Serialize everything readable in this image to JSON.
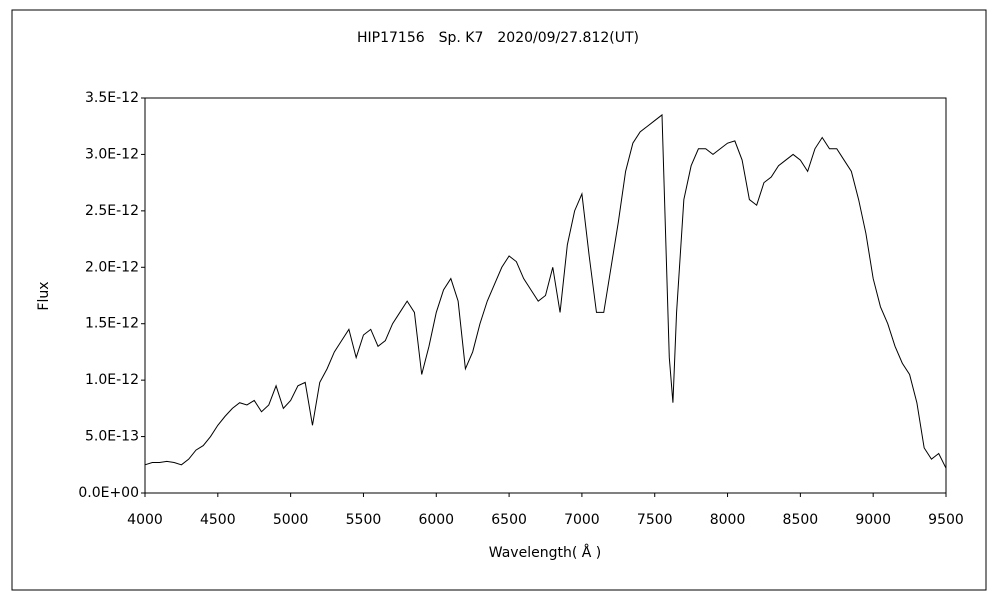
{
  "chart_data": {
    "type": "line",
    "title": "HIP17156　Sp. K7　2020/09/27.812(UT)",
    "x_label": "Wavelength( Å )",
    "y_label": "Flux",
    "color": "#000000",
    "grid": false,
    "xlim": [
      4000,
      9500
    ],
    "xticks": [
      4000,
      4500,
      5000,
      5500,
      6000,
      6500,
      7000,
      7500,
      8000,
      8500,
      9000,
      9500
    ],
    "ylim": [
      0,
      3.5e-12
    ],
    "yticks": [
      {
        "value": 0,
        "label": "0.0E+00"
      },
      {
        "value": 5e-13,
        "label": "5.0E-13"
      },
      {
        "value": 1e-12,
        "label": "1.0E-12"
      },
      {
        "value": 1.5e-12,
        "label": "1.5E-12"
      },
      {
        "value": 2e-12,
        "label": "2.0E-12"
      },
      {
        "value": 2.5e-12,
        "label": "2.5E-12"
      },
      {
        "value": 3e-12,
        "label": "3.0E-12"
      },
      {
        "value": 3.5e-12,
        "label": "3.5E-12"
      }
    ],
    "x": [
      4000,
      4050,
      4100,
      4150,
      4200,
      4250,
      4300,
      4350,
      4400,
      4450,
      4500,
      4550,
      4600,
      4650,
      4700,
      4750,
      4800,
      4850,
      4900,
      4950,
      5000,
      5050,
      5100,
      5150,
      5200,
      5250,
      5300,
      5350,
      5400,
      5450,
      5500,
      5550,
      5600,
      5650,
      5700,
      5750,
      5800,
      5850,
      5900,
      5950,
      6000,
      6050,
      6100,
      6150,
      6200,
      6250,
      6300,
      6350,
      6400,
      6450,
      6500,
      6550,
      6600,
      6650,
      6700,
      6750,
      6800,
      6850,
      6900,
      6950,
      7000,
      7050,
      7100,
      7150,
      7200,
      7250,
      7300,
      7350,
      7400,
      7450,
      7500,
      7550,
      7600,
      7625,
      7650,
      7700,
      7750,
      7800,
      7850,
      7900,
      7950,
      8000,
      8050,
      8100,
      8150,
      8200,
      8250,
      8300,
      8350,
      8400,
      8450,
      8500,
      8550,
      8600,
      8650,
      8700,
      8750,
      8800,
      8850,
      8900,
      8950,
      9000,
      9050,
      9100,
      9150,
      9200,
      9250,
      9300,
      9350,
      9400,
      9450,
      9500
    ],
    "values": [
      2.5e-13,
      2.7e-13,
      2.7e-13,
      2.8e-13,
      2.7e-13,
      2.5e-13,
      3e-13,
      3.8e-13,
      4.2e-13,
      5e-13,
      6e-13,
      6.8e-13,
      7.5e-13,
      8e-13,
      7.8e-13,
      8.2e-13,
      7.2e-13,
      7.8e-13,
      9.5e-13,
      7.5e-13,
      8.2e-13,
      9.5e-13,
      9.8e-13,
      6e-13,
      9.8e-13,
      1.1e-12,
      1.25e-12,
      1.35e-12,
      1.45e-12,
      1.2e-12,
      1.4e-12,
      1.45e-12,
      1.3e-12,
      1.35e-12,
      1.5e-12,
      1.6e-12,
      1.7e-12,
      1.6e-12,
      1.05e-12,
      1.3e-12,
      1.6e-12,
      1.8e-12,
      1.9e-12,
      1.7e-12,
      1.1e-12,
      1.25e-12,
      1.5e-12,
      1.7e-12,
      1.85e-12,
      2e-12,
      2.1e-12,
      2.05e-12,
      1.9e-12,
      1.8e-12,
      1.7e-12,
      1.75e-12,
      2e-12,
      1.6e-12,
      2.2e-12,
      2.5e-12,
      2.65e-12,
      2.1e-12,
      1.6e-12,
      1.6e-12,
      2e-12,
      2.4e-12,
      2.85e-12,
      3.1e-12,
      3.2e-12,
      3.25e-12,
      3.3e-12,
      3.35e-12,
      1.2e-12,
      8e-13,
      1.6e-12,
      2.6e-12,
      2.9e-12,
      3.05e-12,
      3.05e-12,
      3e-12,
      3.05e-12,
      3.1e-12,
      3.12e-12,
      2.95e-12,
      2.6e-12,
      2.55e-12,
      2.75e-12,
      2.8e-12,
      2.9e-12,
      2.95e-12,
      3e-12,
      2.95e-12,
      2.85e-12,
      3.05e-12,
      3.15e-12,
      3.05e-12,
      3.05e-12,
      2.95e-12,
      2.85e-12,
      2.6e-12,
      2.3e-12,
      1.9e-12,
      1.65e-12,
      1.5e-12,
      1.3e-12,
      1.15e-12,
      1.05e-12,
      8e-13,
      4e-13,
      3e-13,
      3.5e-13,
      2.2e-13
    ]
  }
}
